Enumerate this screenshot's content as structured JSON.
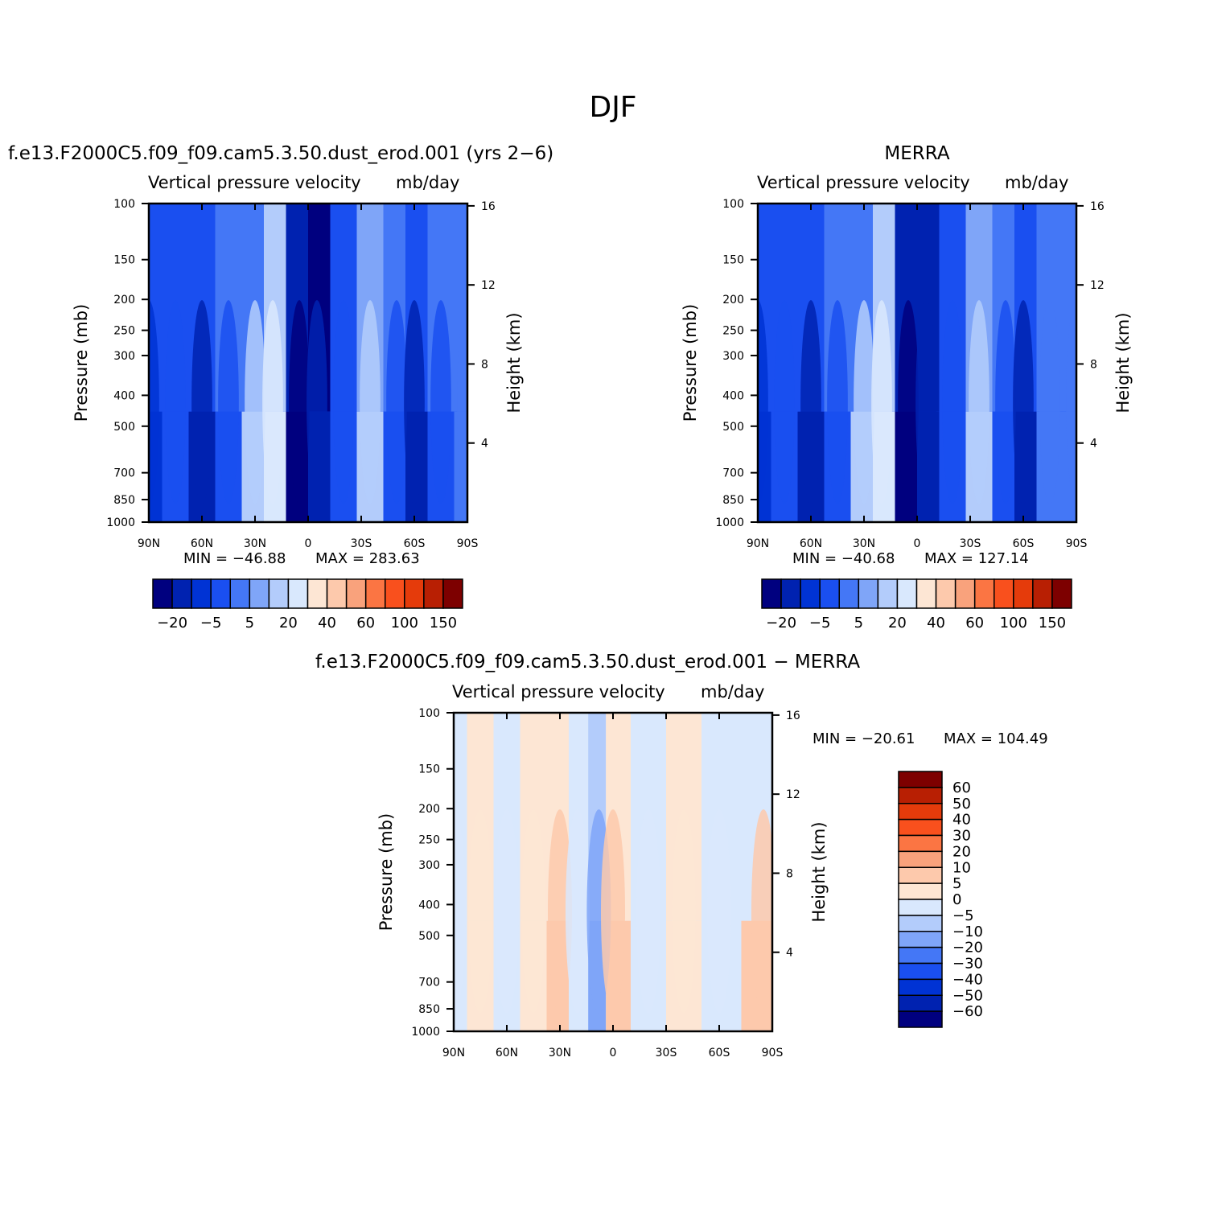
{
  "main_title": "DJF",
  "panels": [
    {
      "case_title": "f.e13.F2000C5.f09_f09.cam5.3.50.dust_erod.001 (yrs 2−6)",
      "variable": "Vertical pressure velocity",
      "units": "mb/day",
      "min_label": "MIN = −46.88",
      "max_label": "MAX = 283.63",
      "colorbar_labels": [
        "−20",
        "−5",
        "5",
        "20",
        "40",
        "60",
        "100",
        "150"
      ]
    },
    {
      "case_title": "MERRA",
      "variable": "Vertical pressure velocity",
      "units": "mb/day",
      "min_label": "MIN = −40.68",
      "max_label": "MAX = 127.14",
      "colorbar_labels": [
        "−20",
        "−5",
        "5",
        "20",
        "40",
        "60",
        "100",
        "150"
      ]
    },
    {
      "case_title": "f.e13.F2000C5.f09_f09.cam5.3.50.dust_erod.001 − MERRA",
      "variable": "Vertical pressure velocity",
      "units": "mb/day",
      "min_label": "MIN = −20.61",
      "max_label": "MAX = 104.49",
      "colorbar_labels": [
        "60",
        "50",
        "40",
        "30",
        "20",
        "10",
        "5",
        "0",
        "−5",
        "−10",
        "−20",
        "−30",
        "−40",
        "−50",
        "−60"
      ]
    }
  ],
  "chart_data": [
    {
      "type": "heatmap",
      "title": "f.e13.F2000C5.f09_f09.cam5.3.50.dust_erod.001 (yrs 2−6)",
      "subtitle": "Vertical pressure velocity mb/day",
      "xlabel": "",
      "ylabel": "Pressure (mb)",
      "ylabel_right": "Height (km)",
      "x_ticks": [
        "90N",
        "60N",
        "30N",
        "0",
        "30S",
        "60S",
        "90S"
      ],
      "y_ticks": [
        100,
        150,
        200,
        250,
        300,
        400,
        500,
        700,
        850,
        1000
      ],
      "y_scale": "log",
      "y_right_ticks": [
        4,
        8,
        12,
        16
      ],
      "min": -46.88,
      "max": 283.63,
      "colorbar": {
        "colors": [
          "#00007f",
          "#0022b0",
          "#0033d4",
          "#1a4ff0",
          "#4477f6",
          "#7fa5f8",
          "#b3ccfb",
          "#d9e8fd",
          "#fde6d4",
          "#fdc9ac",
          "#f9a27c",
          "#fb7543",
          "#f9501d",
          "#e53b0b",
          "#b81f03",
          "#7d0000"
        ],
        "levels": [
          "−20",
          "−5",
          "5",
          "20",
          "40",
          "60",
          "100",
          "150"
        ]
      },
      "columns_by_latitude": [
        {
          "lat": 90,
          "lower": "#0033d4",
          "upper": "#1a4ff0"
        },
        {
          "lat": 75,
          "lower": "#1a4ff0",
          "upper": "#1a4ff0"
        },
        {
          "lat": 60,
          "lower": "#0022b0",
          "upper": "#1a4ff0"
        },
        {
          "lat": 45,
          "lower": "#1a4ff0",
          "upper": "#4477f6"
        },
        {
          "lat": 30,
          "lower": "#b3ccfb",
          "upper": "#4477f6"
        },
        {
          "lat": 20,
          "lower": "#d9e8fd",
          "upper": "#b3ccfb"
        },
        {
          "lat": 5,
          "lower": "#00007f",
          "upper": "#0022b0"
        },
        {
          "lat": -5,
          "lower": "#0022b0",
          "upper": "#00007f"
        },
        {
          "lat": -20,
          "lower": "#1a4ff0",
          "upper": "#1a4ff0"
        },
        {
          "lat": -35,
          "lower": "#b3ccfb",
          "upper": "#7fa5f8"
        },
        {
          "lat": -50,
          "lower": "#1a4ff0",
          "upper": "#4477f6"
        },
        {
          "lat": -60,
          "lower": "#0022b0",
          "upper": "#1a4ff0"
        },
        {
          "lat": -75,
          "lower": "#1a4ff0",
          "upper": "#4477f6"
        },
        {
          "lat": -90,
          "lower": "#4477f6",
          "upper": "#4477f6"
        }
      ]
    },
    {
      "type": "heatmap",
      "title": "MERRA",
      "subtitle": "Vertical pressure velocity mb/day",
      "xlabel": "",
      "ylabel": "Pressure (mb)",
      "ylabel_right": "Height (km)",
      "x_ticks": [
        "90N",
        "60N",
        "30N",
        "0",
        "30S",
        "60S",
        "90S"
      ],
      "y_ticks": [
        100,
        150,
        200,
        250,
        300,
        400,
        500,
        700,
        850,
        1000
      ],
      "y_scale": "log",
      "y_right_ticks": [
        4,
        8,
        12,
        16
      ],
      "min": -40.68,
      "max": 127.14,
      "colorbar": {
        "colors": [
          "#00007f",
          "#0022b0",
          "#0033d4",
          "#1a4ff0",
          "#4477f6",
          "#7fa5f8",
          "#b3ccfb",
          "#d9e8fd",
          "#fde6d4",
          "#fdc9ac",
          "#f9a27c",
          "#fb7543",
          "#f9501d",
          "#e53b0b",
          "#b81f03",
          "#7d0000"
        ],
        "levels": [
          "−20",
          "−5",
          "5",
          "20",
          "40",
          "60",
          "100",
          "150"
        ]
      },
      "columns_by_latitude": [
        {
          "lat": 90,
          "lower": "#0033d4",
          "upper": "#1a4ff0"
        },
        {
          "lat": 75,
          "lower": "#1a4ff0",
          "upper": "#1a4ff0"
        },
        {
          "lat": 60,
          "lower": "#0022b0",
          "upper": "#1a4ff0"
        },
        {
          "lat": 45,
          "lower": "#1a4ff0",
          "upper": "#4477f6"
        },
        {
          "lat": 30,
          "lower": "#b3ccfb",
          "upper": "#4477f6"
        },
        {
          "lat": 20,
          "lower": "#d9e8fd",
          "upper": "#b3ccfb"
        },
        {
          "lat": 5,
          "lower": "#00007f",
          "upper": "#0022b0"
        },
        {
          "lat": -5,
          "lower": "#0022b0",
          "upper": "#0022b0"
        },
        {
          "lat": -20,
          "lower": "#1a4ff0",
          "upper": "#1a4ff0"
        },
        {
          "lat": -35,
          "lower": "#b3ccfb",
          "upper": "#7fa5f8"
        },
        {
          "lat": -50,
          "lower": "#1a4ff0",
          "upper": "#4477f6"
        },
        {
          "lat": -60,
          "lower": "#0022b0",
          "upper": "#1a4ff0"
        },
        {
          "lat": -75,
          "lower": "#4477f6",
          "upper": "#4477f6"
        },
        {
          "lat": -90,
          "lower": "#4477f6",
          "upper": "#4477f6"
        }
      ]
    },
    {
      "type": "heatmap",
      "title": "f.e13.F2000C5.f09_f09.cam5.3.50.dust_erod.001 − MERRA",
      "subtitle": "Vertical pressure velocity mb/day",
      "xlabel": "",
      "ylabel": "Pressure (mb)",
      "ylabel_right": "Height (km)",
      "x_ticks": [
        "90N",
        "60N",
        "30N",
        "0",
        "30S",
        "60S",
        "90S"
      ],
      "y_ticks": [
        100,
        150,
        200,
        250,
        300,
        400,
        500,
        700,
        850,
        1000
      ],
      "y_scale": "log",
      "y_right_ticks": [
        4,
        8,
        12,
        16
      ],
      "min": -20.61,
      "max": 104.49,
      "colorbar": {
        "colors": [
          "#00007f",
          "#0022b0",
          "#0033d4",
          "#1a4ff0",
          "#4477f6",
          "#7fa5f8",
          "#b3ccfb",
          "#d9e8fd",
          "#fde6d4",
          "#fdc9ac",
          "#f9a27c",
          "#fb7543",
          "#f9501d",
          "#e53b0b",
          "#b81f03",
          "#7d0000"
        ],
        "levels": [
          "−60",
          "−50",
          "−40",
          "−30",
          "−20",
          "−10",
          "−5",
          "0",
          "5",
          "10",
          "20",
          "30",
          "40",
          "50",
          "60"
        ]
      },
      "columns_by_latitude": [
        {
          "lat": 90,
          "lower": "#d9e8fd",
          "upper": "#d9e8fd"
        },
        {
          "lat": 75,
          "lower": "#fde6d4",
          "upper": "#fde6d4"
        },
        {
          "lat": 60,
          "lower": "#d9e8fd",
          "upper": "#d9e8fd"
        },
        {
          "lat": 45,
          "lower": "#fde6d4",
          "upper": "#fde6d4"
        },
        {
          "lat": 30,
          "lower": "#fdc9ac",
          "upper": "#fde6d4"
        },
        {
          "lat": 20,
          "lower": "#d9e8fd",
          "upper": "#d9e8fd"
        },
        {
          "lat": 8,
          "lower": "#7fa5f8",
          "upper": "#b3ccfb"
        },
        {
          "lat": 0,
          "lower": "#fdc9ac",
          "upper": "#fde6d4"
        },
        {
          "lat": -20,
          "lower": "#d9e8fd",
          "upper": "#d9e8fd"
        },
        {
          "lat": -40,
          "lower": "#fde6d4",
          "upper": "#fde6d4"
        },
        {
          "lat": -60,
          "lower": "#d9e8fd",
          "upper": "#d9e8fd"
        },
        {
          "lat": -85,
          "lower": "#fdc9ac",
          "upper": "#d9e8fd"
        }
      ]
    }
  ]
}
